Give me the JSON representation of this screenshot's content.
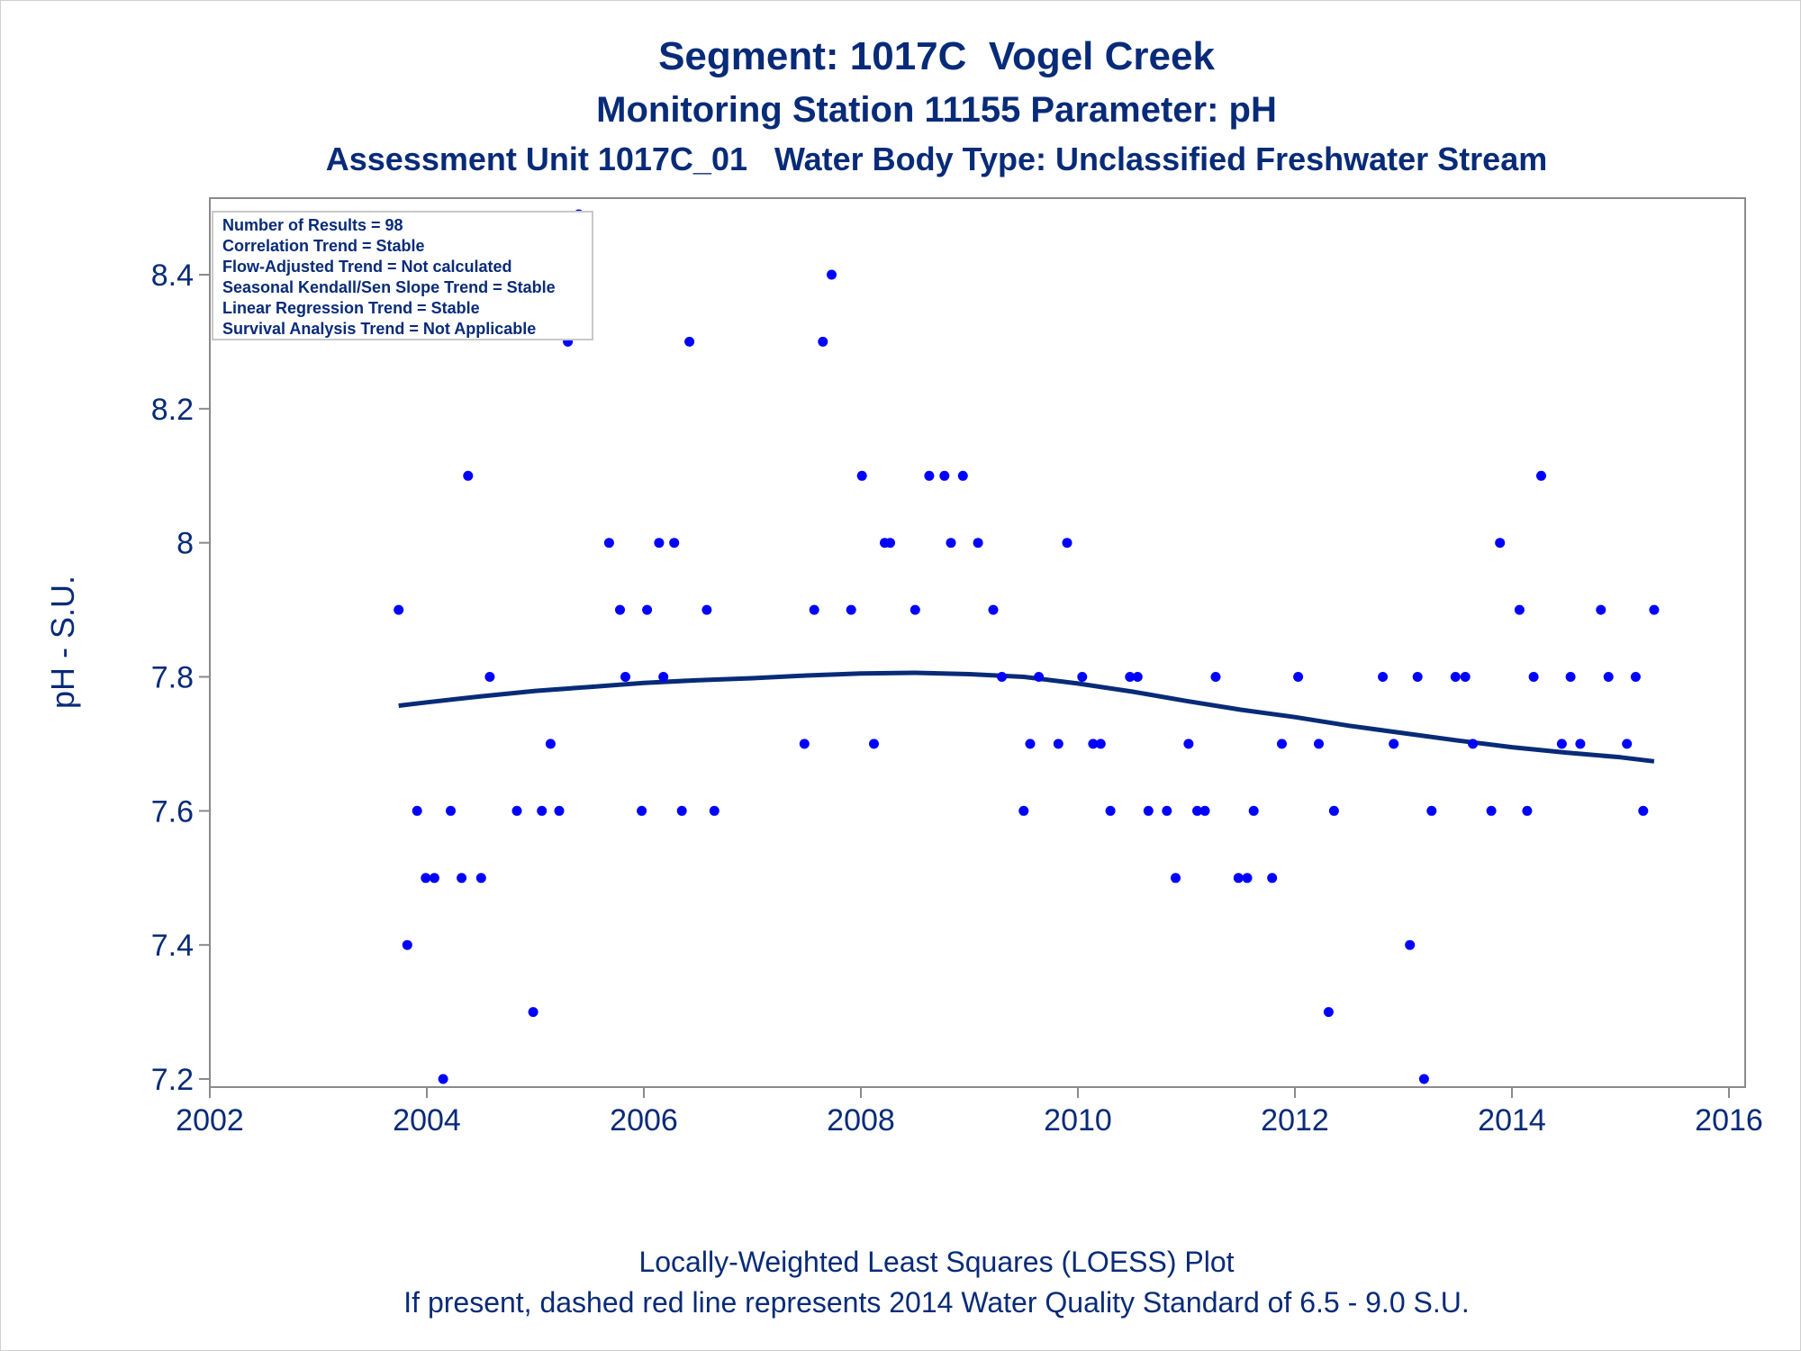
{
  "chart_data": {
    "type": "scatter",
    "title": "Segment: 1017C  Vogel Creek",
    "subtitle": "Monitoring Station 11155 Parameter: pH",
    "subtitle2": "Assessment Unit 1017C_01   Water Body Type: Unclassified Freshwater Stream",
    "xlabel": "",
    "ylabel": "pH - S.U.",
    "xlim": [
      2002,
      2016
    ],
    "ylim": [
      7.18,
      8.52
    ],
    "x_ticks": [
      "2002",
      "2004",
      "2006",
      "2008",
      "2010",
      "2012",
      "2014",
      "2016"
    ],
    "y_ticks": [
      "7.2",
      "7.4",
      "7.6",
      "7.8",
      "8",
      "8.2",
      "8.4"
    ],
    "grid": false,
    "point_color": "#0000ff",
    "line_color": "#082b78",
    "info_box": [
      "Number of Results = 98",
      "Correlation Trend = Stable",
      "Flow-Adjusted Trend = Not calculated",
      "Seasonal Kendall/Sen Slope Trend = Stable",
      "Linear Regression Trend = Stable",
      "Survival Analysis Trend = Not Applicable"
    ],
    "points": [
      {
        "x": 2003.74,
        "y": 7.9
      },
      {
        "x": 2003.82,
        "y": 7.4
      },
      {
        "x": 2003.91,
        "y": 7.6
      },
      {
        "x": 2003.99,
        "y": 7.5
      },
      {
        "x": 2004.07,
        "y": 7.5
      },
      {
        "x": 2004.15,
        "y": 7.2
      },
      {
        "x": 2004.22,
        "y": 7.6
      },
      {
        "x": 2004.32,
        "y": 7.5
      },
      {
        "x": 2004.38,
        "y": 8.1
      },
      {
        "x": 2004.5,
        "y": 7.5
      },
      {
        "x": 2004.58,
        "y": 7.8
      },
      {
        "x": 2004.83,
        "y": 7.6
      },
      {
        "x": 2004.98,
        "y": 7.3
      },
      {
        "x": 2005.06,
        "y": 7.6
      },
      {
        "x": 2005.14,
        "y": 7.7
      },
      {
        "x": 2005.22,
        "y": 7.6
      },
      {
        "x": 2005.3,
        "y": 8.3
      },
      {
        "x": 2005.4,
        "y": 8.49
      },
      {
        "x": 2005.68,
        "y": 8.0
      },
      {
        "x": 2005.78,
        "y": 7.9
      },
      {
        "x": 2005.83,
        "y": 7.8
      },
      {
        "x": 2005.98,
        "y": 7.6
      },
      {
        "x": 2006.03,
        "y": 7.9
      },
      {
        "x": 2006.14,
        "y": 8.0
      },
      {
        "x": 2006.18,
        "y": 7.8
      },
      {
        "x": 2006.28,
        "y": 8.0
      },
      {
        "x": 2006.35,
        "y": 7.6
      },
      {
        "x": 2006.42,
        "y": 8.3
      },
      {
        "x": 2006.58,
        "y": 7.9
      },
      {
        "x": 2006.65,
        "y": 7.6
      },
      {
        "x": 2007.48,
        "y": 7.7
      },
      {
        "x": 2007.57,
        "y": 7.9
      },
      {
        "x": 2007.65,
        "y": 8.3
      },
      {
        "x": 2007.73,
        "y": 8.4
      },
      {
        "x": 2007.91,
        "y": 7.9
      },
      {
        "x": 2008.01,
        "y": 8.1
      },
      {
        "x": 2008.12,
        "y": 7.7
      },
      {
        "x": 2008.22,
        "y": 8.0
      },
      {
        "x": 2008.27,
        "y": 8.0
      },
      {
        "x": 2008.5,
        "y": 7.9
      },
      {
        "x": 2008.63,
        "y": 8.1
      },
      {
        "x": 2008.77,
        "y": 8.1
      },
      {
        "x": 2008.83,
        "y": 8.0
      },
      {
        "x": 2008.94,
        "y": 8.1
      },
      {
        "x": 2009.08,
        "y": 8.0
      },
      {
        "x": 2009.22,
        "y": 7.9
      },
      {
        "x": 2009.3,
        "y": 7.8
      },
      {
        "x": 2009.5,
        "y": 7.6
      },
      {
        "x": 2009.56,
        "y": 7.7
      },
      {
        "x": 2009.64,
        "y": 7.8
      },
      {
        "x": 2009.82,
        "y": 7.7
      },
      {
        "x": 2009.9,
        "y": 8.0
      },
      {
        "x": 2010.04,
        "y": 7.8
      },
      {
        "x": 2010.14,
        "y": 7.7
      },
      {
        "x": 2010.21,
        "y": 7.7
      },
      {
        "x": 2010.3,
        "y": 7.6
      },
      {
        "x": 2010.48,
        "y": 7.8
      },
      {
        "x": 2010.55,
        "y": 7.8
      },
      {
        "x": 2010.65,
        "y": 7.6
      },
      {
        "x": 2010.82,
        "y": 7.6
      },
      {
        "x": 2010.9,
        "y": 7.5
      },
      {
        "x": 2011.02,
        "y": 7.7
      },
      {
        "x": 2011.1,
        "y": 7.6
      },
      {
        "x": 2011.17,
        "y": 7.6
      },
      {
        "x": 2011.27,
        "y": 7.8
      },
      {
        "x": 2011.48,
        "y": 7.5
      },
      {
        "x": 2011.56,
        "y": 7.5
      },
      {
        "x": 2011.62,
        "y": 7.6
      },
      {
        "x": 2011.79,
        "y": 7.5
      },
      {
        "x": 2011.88,
        "y": 7.7
      },
      {
        "x": 2012.03,
        "y": 7.8
      },
      {
        "x": 2012.22,
        "y": 7.7
      },
      {
        "x": 2012.31,
        "y": 7.3
      },
      {
        "x": 2012.36,
        "y": 7.6
      },
      {
        "x": 2012.81,
        "y": 7.8
      },
      {
        "x": 2012.91,
        "y": 7.7
      },
      {
        "x": 2013.06,
        "y": 7.4
      },
      {
        "x": 2013.13,
        "y": 7.8
      },
      {
        "x": 2013.19,
        "y": 7.2
      },
      {
        "x": 2013.26,
        "y": 7.6
      },
      {
        "x": 2013.48,
        "y": 7.8
      },
      {
        "x": 2013.57,
        "y": 7.8
      },
      {
        "x": 2013.64,
        "y": 7.7
      },
      {
        "x": 2013.81,
        "y": 7.6
      },
      {
        "x": 2013.89,
        "y": 8.0
      },
      {
        "x": 2014.07,
        "y": 7.9
      },
      {
        "x": 2014.14,
        "y": 7.6
      },
      {
        "x": 2014.2,
        "y": 7.8
      },
      {
        "x": 2014.27,
        "y": 8.1
      },
      {
        "x": 2014.46,
        "y": 7.7
      },
      {
        "x": 2014.54,
        "y": 7.8
      },
      {
        "x": 2014.63,
        "y": 7.7
      },
      {
        "x": 2014.82,
        "y": 7.9
      },
      {
        "x": 2014.89,
        "y": 7.8
      },
      {
        "x": 2015.06,
        "y": 7.7
      },
      {
        "x": 2015.14,
        "y": 7.8
      },
      {
        "x": 2015.21,
        "y": 7.6
      },
      {
        "x": 2015.31,
        "y": 7.9
      }
    ],
    "loess": [
      {
        "x": 2003.74,
        "y": 7.757
      },
      {
        "x": 2004.0,
        "y": 7.762
      },
      {
        "x": 2004.5,
        "y": 7.771
      },
      {
        "x": 2005.0,
        "y": 7.779
      },
      {
        "x": 2005.5,
        "y": 7.785
      },
      {
        "x": 2006.0,
        "y": 7.791
      },
      {
        "x": 2006.5,
        "y": 7.795
      },
      {
        "x": 2007.0,
        "y": 7.798
      },
      {
        "x": 2007.5,
        "y": 7.802
      },
      {
        "x": 2008.0,
        "y": 7.805
      },
      {
        "x": 2008.5,
        "y": 7.806
      },
      {
        "x": 2009.0,
        "y": 7.804
      },
      {
        "x": 2009.5,
        "y": 7.8
      },
      {
        "x": 2010.0,
        "y": 7.79
      },
      {
        "x": 2010.5,
        "y": 7.778
      },
      {
        "x": 2011.0,
        "y": 7.764
      },
      {
        "x": 2011.5,
        "y": 7.751
      },
      {
        "x": 2012.0,
        "y": 7.74
      },
      {
        "x": 2012.5,
        "y": 7.727
      },
      {
        "x": 2013.0,
        "y": 7.716
      },
      {
        "x": 2013.5,
        "y": 7.705
      },
      {
        "x": 2014.0,
        "y": 7.695
      },
      {
        "x": 2014.5,
        "y": 7.687
      },
      {
        "x": 2015.0,
        "y": 7.68
      },
      {
        "x": 2015.31,
        "y": 7.674
      }
    ]
  },
  "footer": {
    "line1": "Locally-Weighted Least Squares (LOESS) Plot",
    "line2": "If present, dashed red line represents 2014 Water Quality Standard of 6.5 - 9.0 S.U."
  }
}
